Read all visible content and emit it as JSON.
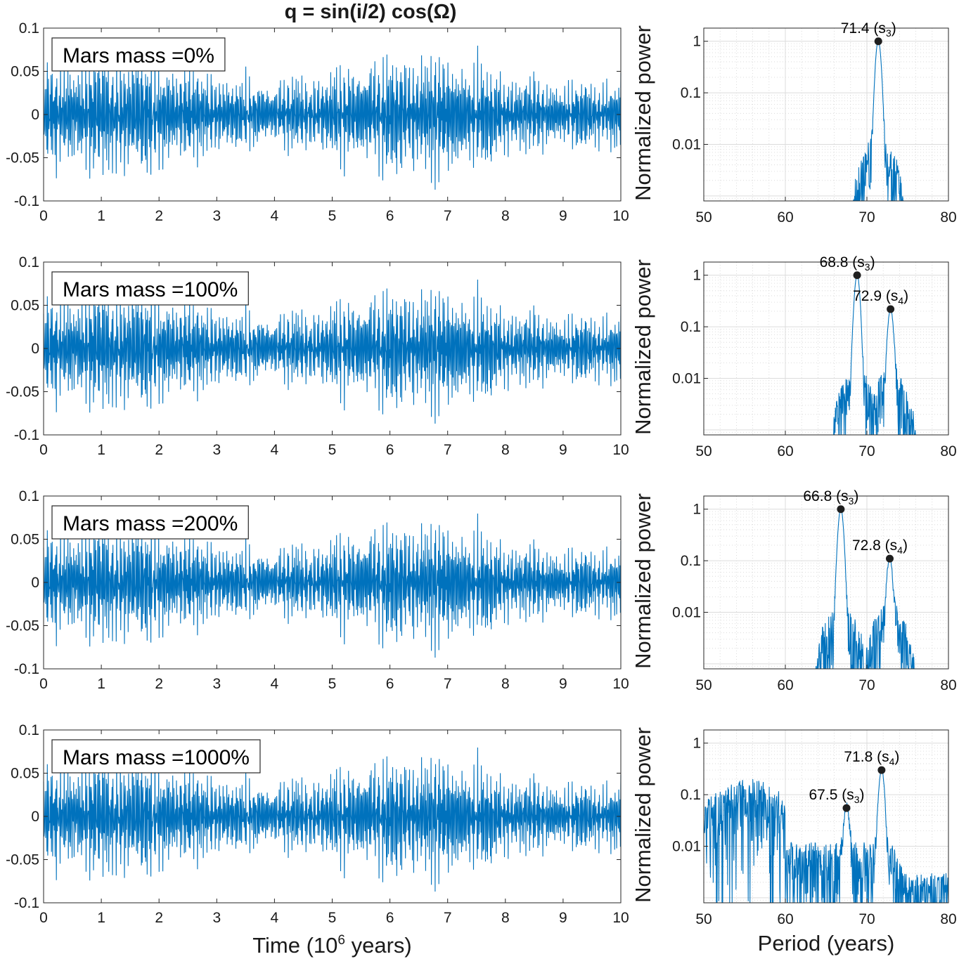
{
  "title": "q = sin(i/2) cos(Ω)",
  "chart_data": [
    {
      "type": "line",
      "panel": "time-series",
      "legend": "Mars mass =0%",
      "xlabel": "",
      "ylabel": "",
      "xlim": [
        0,
        10
      ],
      "ylim": [
        -0.1,
        0.1
      ],
      "xticks": [
        "0",
        "1",
        "2",
        "3",
        "4",
        "5",
        "6",
        "7",
        "8",
        "9",
        "10"
      ],
      "yticks": [
        "0.1",
        "0.05",
        "0",
        "-0.05",
        "-0.1"
      ],
      "series": [
        {
          "name": "q",
          "amplitude": 0.06,
          "min": -0.087,
          "max": 0.083,
          "color": "#0072BD"
        }
      ]
    },
    {
      "type": "line",
      "panel": "spectrum",
      "ylabel": "Normalized power",
      "xlabel": "",
      "xlim": [
        50,
        80
      ],
      "ylim": [
        0.0008,
        1.8
      ],
      "yscale": "log",
      "grid": true,
      "xticks": [
        "50",
        "60",
        "70",
        "80"
      ],
      "yticks": [
        "1",
        "0.1",
        "0.01"
      ],
      "peaks": [
        {
          "period": 71.4,
          "power": 1.0,
          "label": "71.4",
          "sub": "3"
        }
      ],
      "color": "#0072BD"
    },
    {
      "type": "line",
      "panel": "time-series",
      "legend": "Mars mass =100%",
      "xlabel": "",
      "ylabel": "",
      "xlim": [
        0,
        10
      ],
      "ylim": [
        -0.1,
        0.1
      ],
      "xticks": [
        "0",
        "1",
        "2",
        "3",
        "4",
        "5",
        "6",
        "7",
        "8",
        "9",
        "10"
      ],
      "yticks": [
        "0.1",
        "0.05",
        "0",
        "-0.05",
        "-0.1"
      ],
      "series": [
        {
          "name": "q",
          "amplitude": 0.06,
          "min": -0.087,
          "max": 0.083,
          "color": "#0072BD"
        }
      ]
    },
    {
      "type": "line",
      "panel": "spectrum",
      "ylabel": "Normalized power",
      "xlabel": "",
      "xlim": [
        50,
        80
      ],
      "ylim": [
        0.0008,
        1.8
      ],
      "yscale": "log",
      "grid": true,
      "xticks": [
        "50",
        "60",
        "70",
        "80"
      ],
      "yticks": [
        "1",
        "0.1",
        "0.01"
      ],
      "peaks": [
        {
          "period": 68.8,
          "power": 1.0,
          "label": "68.8",
          "sub": "3"
        },
        {
          "period": 72.9,
          "power": 0.22,
          "label": "72.9",
          "sub": "4"
        }
      ],
      "color": "#0072BD"
    },
    {
      "type": "line",
      "panel": "time-series",
      "legend": "Mars mass =200%",
      "xlabel": "",
      "ylabel": "",
      "xlim": [
        0,
        10
      ],
      "ylim": [
        -0.1,
        0.1
      ],
      "xticks": [
        "0",
        "1",
        "2",
        "3",
        "4",
        "5",
        "6",
        "7",
        "8",
        "9",
        "10"
      ],
      "yticks": [
        "0.1",
        "0.05",
        "0",
        "-0.05",
        "-0.1"
      ],
      "series": [
        {
          "name": "q",
          "amplitude": 0.06,
          "min": -0.087,
          "max": 0.083,
          "color": "#0072BD"
        }
      ]
    },
    {
      "type": "line",
      "panel": "spectrum",
      "ylabel": "Normalized power",
      "xlabel": "",
      "xlim": [
        50,
        80
      ],
      "ylim": [
        0.0008,
        1.8
      ],
      "yscale": "log",
      "grid": true,
      "xticks": [
        "50",
        "60",
        "70",
        "80"
      ],
      "yticks": [
        "1",
        "0.1",
        "0.01"
      ],
      "peaks": [
        {
          "period": 66.8,
          "power": 1.0,
          "label": "66.8",
          "sub": "3"
        },
        {
          "period": 72.8,
          "power": 0.11,
          "label": "72.8",
          "sub": "4"
        }
      ],
      "color": "#0072BD"
    },
    {
      "type": "line",
      "panel": "time-series",
      "legend": "Mars mass =1000%",
      "xlabel": "Time (10",
      "xlabel_sup": "6",
      "xlabel_tail": " years)",
      "ylabel": "",
      "xlim": [
        0,
        10
      ],
      "ylim": [
        -0.1,
        0.1
      ],
      "xticks": [
        "0",
        "1",
        "2",
        "3",
        "4",
        "5",
        "6",
        "7",
        "8",
        "9",
        "10"
      ],
      "yticks": [
        "0.1",
        "0.05",
        "0",
        "-0.05",
        "-0.1"
      ],
      "series": [
        {
          "name": "q",
          "amplitude": 0.06,
          "min": -0.087,
          "max": 0.083,
          "color": "#0072BD"
        }
      ]
    },
    {
      "type": "line",
      "panel": "spectrum",
      "ylabel": "Normalized power",
      "xlabel": "Period (years)",
      "xlim": [
        50,
        80
      ],
      "ylim": [
        0.0008,
        1.8
      ],
      "yscale": "log",
      "grid": true,
      "xticks": [
        "50",
        "60",
        "70",
        "80"
      ],
      "yticks": [
        "1",
        "0.1",
        "0.01"
      ],
      "peaks": [
        {
          "period": 67.5,
          "power": 0.055,
          "label": "67.5",
          "sub": "3"
        },
        {
          "period": 71.8,
          "power": 0.3,
          "label": "71.8",
          "sub": "4"
        }
      ],
      "color": "#0072BD"
    }
  ]
}
